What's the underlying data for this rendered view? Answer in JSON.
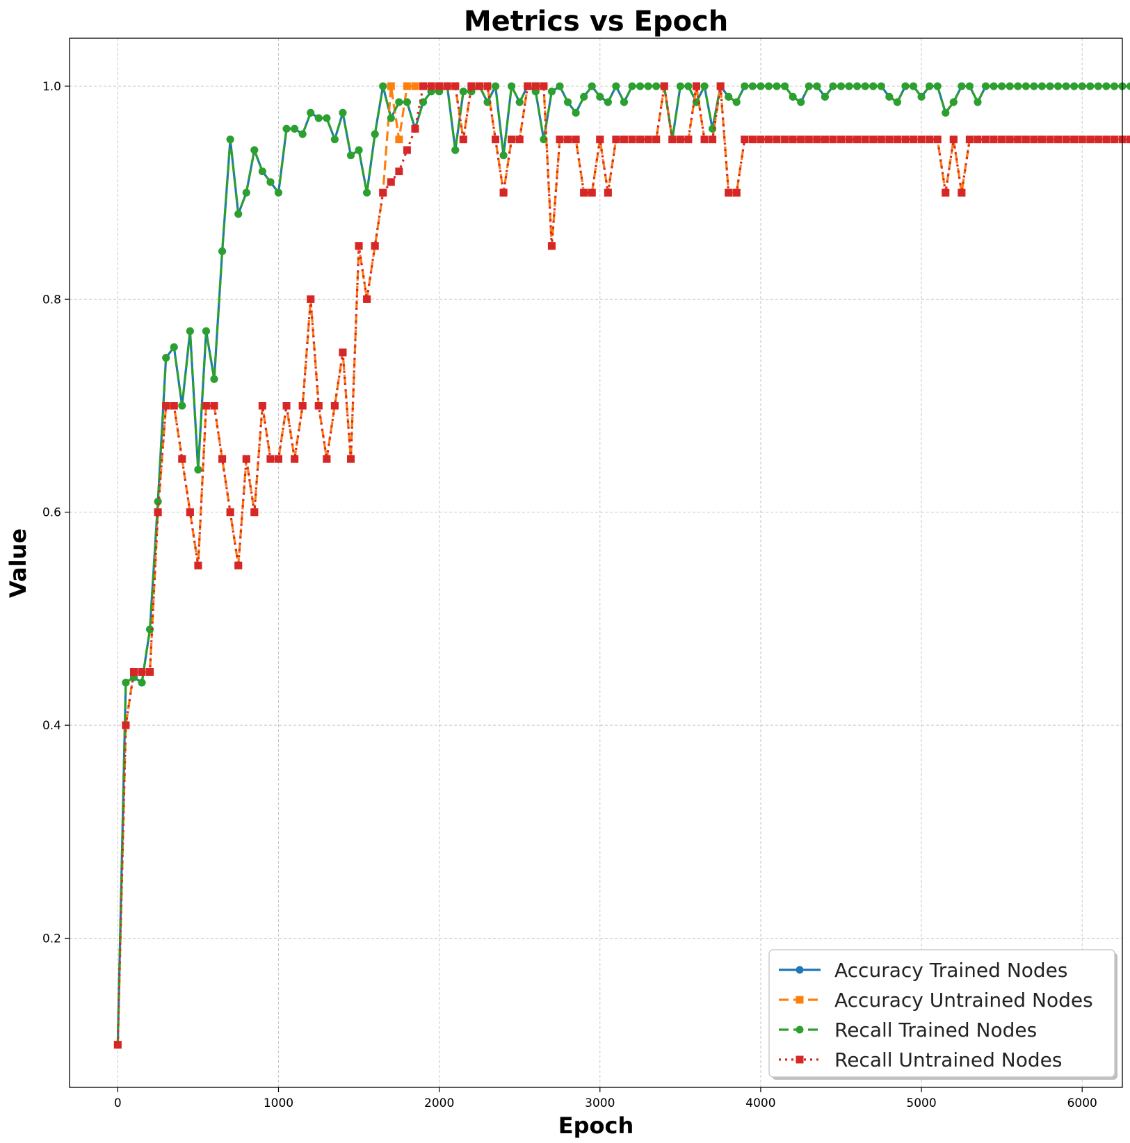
{
  "chart_data": {
    "type": "line",
    "title": "Metrics vs Epoch",
    "xlabel": "Epoch",
    "ylabel": "Value",
    "xlim": [
      -300,
      6250
    ],
    "ylim": [
      0.06,
      1.045
    ],
    "xticks": [
      0,
      1000,
      2000,
      3000,
      4000,
      5000,
      6000
    ],
    "yticks": [
      0.2,
      0.4,
      0.6,
      0.8,
      1.0
    ],
    "xtick_labels": [
      "0",
      "1000",
      "2000",
      "3000",
      "4000",
      "5000",
      "6000"
    ],
    "ytick_labels": [
      "0.2",
      "0.4",
      "0.6",
      "0.8",
      "1.0"
    ],
    "grid": true,
    "legend_position": "bottom-right",
    "x_start": 0,
    "x_step": 50,
    "series": [
      {
        "name": "Accuracy Trained Nodes",
        "color": "#1f77b4",
        "marker": "circle",
        "line_style": "solid",
        "values": [
          0.1,
          0.44,
          0.445,
          0.44,
          0.49,
          0.61,
          0.745,
          0.755,
          0.7,
          0.77,
          0.64,
          0.77,
          0.725,
          0.845,
          0.95,
          0.88,
          0.9,
          0.94,
          0.92,
          0.91,
          0.9,
          0.96,
          0.96,
          0.955,
          0.975,
          0.97,
          0.97,
          0.95,
          0.975,
          0.935,
          0.94,
          0.9,
          0.955,
          1.0,
          0.97,
          0.985,
          0.985,
          0.96,
          0.985,
          0.995,
          0.995,
          1.0,
          0.94,
          0.995,
          0.995,
          1.0,
          0.985,
          1.0,
          0.935,
          1.0,
          0.985,
          1.0,
          0.995,
          0.95,
          0.995,
          1.0,
          0.985,
          0.975,
          0.99,
          1.0,
          0.99,
          0.985,
          1.0,
          0.985,
          1.0,
          1.0,
          1.0,
          1.0,
          1.0,
          0.95,
          1.0,
          1.0,
          0.985,
          1.0,
          0.96,
          1.0,
          0.99,
          0.985,
          1.0,
          1.0,
          1.0,
          1.0,
          1.0,
          1.0,
          0.99,
          0.985,
          1.0,
          1.0,
          0.99,
          1.0,
          1.0,
          1.0,
          1.0,
          1.0,
          1.0,
          1.0,
          0.99,
          0.985,
          1.0,
          1.0,
          0.99,
          1.0,
          1.0,
          0.975,
          0.985,
          1.0,
          1.0,
          0.985,
          1.0,
          1.0,
          1.0,
          1.0,
          1.0,
          1.0,
          1.0,
          1.0,
          1.0,
          1.0,
          1.0,
          1.0,
          1.0,
          1.0,
          1.0,
          1.0,
          1.0,
          1.0,
          1.0,
          1.0,
          1.0,
          1.0
        ]
      },
      {
        "name": "Accuracy Untrained Nodes",
        "color": "#ff7f0e",
        "marker": "square",
        "line_style": "dashed",
        "values": [
          0.1,
          0.4,
          0.45,
          0.45,
          0.45,
          0.6,
          0.7,
          0.7,
          0.65,
          0.6,
          0.55,
          0.7,
          0.7,
          0.65,
          0.6,
          0.55,
          0.65,
          0.6,
          0.7,
          0.65,
          0.65,
          0.7,
          0.65,
          0.7,
          0.8,
          0.7,
          0.65,
          0.7,
          0.75,
          0.65,
          0.85,
          0.8,
          0.85,
          0.9,
          1.0,
          0.95,
          1.0,
          1.0,
          1.0,
          1.0,
          1.0,
          1.0,
          1.0,
          0.95,
          1.0,
          1.0,
          1.0,
          0.95,
          0.9,
          0.95,
          0.95,
          1.0,
          1.0,
          1.0,
          0.85,
          0.95,
          0.95,
          0.95,
          0.9,
          0.9,
          0.95,
          0.9,
          0.95,
          0.95,
          0.95,
          0.95,
          0.95,
          0.95,
          1.0,
          0.95,
          0.95,
          0.95,
          1.0,
          0.95,
          0.95,
          1.0,
          0.9,
          0.9,
          0.95,
          0.95,
          0.95,
          0.95,
          0.95,
          0.95,
          0.95,
          0.95,
          0.95,
          0.95,
          0.95,
          0.95,
          0.95,
          0.95,
          0.95,
          0.95,
          0.95,
          0.95,
          0.95,
          0.95,
          0.95,
          0.95,
          0.95,
          0.95,
          0.95,
          0.9,
          0.95,
          0.9,
          0.95,
          0.95,
          0.95,
          0.95,
          0.95,
          0.95,
          0.95,
          0.95,
          0.95,
          0.95,
          0.95,
          0.95,
          0.95,
          0.95,
          0.95,
          0.95,
          0.95,
          0.95,
          0.95,
          0.95,
          0.95,
          0.95,
          0.95,
          0.95
        ]
      },
      {
        "name": "Recall Trained Nodes",
        "color": "#2ca02c",
        "marker": "circle",
        "line_style": "dashed",
        "values": [
          0.1,
          0.44,
          0.445,
          0.44,
          0.49,
          0.61,
          0.745,
          0.755,
          0.7,
          0.77,
          0.64,
          0.77,
          0.725,
          0.845,
          0.95,
          0.88,
          0.9,
          0.94,
          0.92,
          0.91,
          0.9,
          0.96,
          0.96,
          0.955,
          0.975,
          0.97,
          0.97,
          0.95,
          0.975,
          0.935,
          0.94,
          0.9,
          0.955,
          1.0,
          0.97,
          0.985,
          0.985,
          0.96,
          0.985,
          0.995,
          0.995,
          1.0,
          0.94,
          0.995,
          0.995,
          1.0,
          0.985,
          1.0,
          0.935,
          1.0,
          0.985,
          1.0,
          0.995,
          0.95,
          0.995,
          1.0,
          0.985,
          0.975,
          0.99,
          1.0,
          0.99,
          0.985,
          1.0,
          0.985,
          1.0,
          1.0,
          1.0,
          1.0,
          1.0,
          0.95,
          1.0,
          1.0,
          0.985,
          1.0,
          0.96,
          1.0,
          0.99,
          0.985,
          1.0,
          1.0,
          1.0,
          1.0,
          1.0,
          1.0,
          0.99,
          0.985,
          1.0,
          1.0,
          0.99,
          1.0,
          1.0,
          1.0,
          1.0,
          1.0,
          1.0,
          1.0,
          0.99,
          0.985,
          1.0,
          1.0,
          0.99,
          1.0,
          1.0,
          0.975,
          0.985,
          1.0,
          1.0,
          0.985,
          1.0,
          1.0,
          1.0,
          1.0,
          1.0,
          1.0,
          1.0,
          1.0,
          1.0,
          1.0,
          1.0,
          1.0,
          1.0,
          1.0,
          1.0,
          1.0,
          1.0,
          1.0,
          1.0,
          1.0,
          1.0,
          1.0
        ]
      },
      {
        "name": "Recall Untrained Nodes",
        "color": "#d62728",
        "marker": "square",
        "line_style": "dotted",
        "values": [
          0.1,
          0.4,
          0.45,
          0.45,
          0.45,
          0.6,
          0.7,
          0.7,
          0.65,
          0.6,
          0.55,
          0.7,
          0.7,
          0.65,
          0.6,
          0.55,
          0.65,
          0.6,
          0.7,
          0.65,
          0.65,
          0.7,
          0.65,
          0.7,
          0.8,
          0.7,
          0.65,
          0.7,
          0.75,
          0.65,
          0.85,
          0.8,
          0.85,
          0.9,
          0.91,
          0.92,
          0.94,
          0.96,
          1.0,
          1.0,
          1.0,
          1.0,
          1.0,
          0.95,
          1.0,
          1.0,
          1.0,
          0.95,
          0.9,
          0.95,
          0.95,
          1.0,
          1.0,
          1.0,
          0.85,
          0.95,
          0.95,
          0.95,
          0.9,
          0.9,
          0.95,
          0.9,
          0.95,
          0.95,
          0.95,
          0.95,
          0.95,
          0.95,
          1.0,
          0.95,
          0.95,
          0.95,
          1.0,
          0.95,
          0.95,
          1.0,
          0.9,
          0.9,
          0.95,
          0.95,
          0.95,
          0.95,
          0.95,
          0.95,
          0.95,
          0.95,
          0.95,
          0.95,
          0.95,
          0.95,
          0.95,
          0.95,
          0.95,
          0.95,
          0.95,
          0.95,
          0.95,
          0.95,
          0.95,
          0.95,
          0.95,
          0.95,
          0.95,
          0.9,
          0.95,
          0.9,
          0.95,
          0.95,
          0.95,
          0.95,
          0.95,
          0.95,
          0.95,
          0.95,
          0.95,
          0.95,
          0.95,
          0.95,
          0.95,
          0.95,
          0.95,
          0.95,
          0.95,
          0.95,
          0.95,
          0.95,
          0.95,
          0.95,
          0.95,
          0.95
        ]
      }
    ]
  }
}
